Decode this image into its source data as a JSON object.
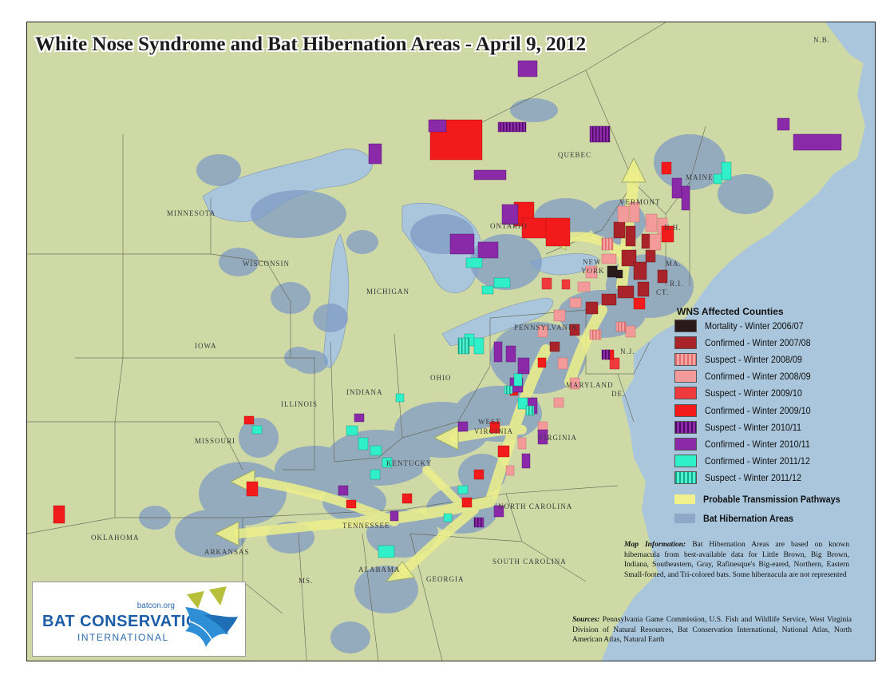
{
  "title": "White Nose Syndrome and Bat Hibernation Areas - April 9, 2012",
  "map_labels": {
    "minnesota": "MINNESOTA",
    "wisconsin": "WISCONSIN",
    "michigan": "MICHIGAN",
    "iowa": "IOWA",
    "illinois": "ILLINOIS",
    "indiana": "INDIANA",
    "ohio": "OHIO",
    "missouri": "MISSOURI",
    "kentucky": "KENTUCKY",
    "tennessee": "TENNESSEE",
    "oklahoma": "OKLAHOMA",
    "arkansas": "ARKANSAS",
    "ms": "MS.",
    "alabama": "ALABAMA",
    "georgia": "GEORGIA",
    "south_carolina": "SOUTH CAROLINA",
    "north_carolina": "NORTH CAROLINA",
    "west_virginia_1": "WEST",
    "west_virginia_2": "VIRGINIA",
    "virginia": "VIRGINIA",
    "maryland": "MARYLAND",
    "de": "DE.",
    "nj": "N.J.",
    "pennsylvania": "PENNSYLVANIA",
    "new_york_1": "NEW",
    "new_york_2": "YORK",
    "ontario": "ONTARIO",
    "quebec": "QUEBEC",
    "vermont": "VERMONT",
    "maine": "MAINE",
    "nh": "N.H.",
    "ma": "MA.",
    "ri": "R.I.",
    "ct": "CT.",
    "nb": "N.B."
  },
  "legend": {
    "title": "WNS Affected Counties",
    "items": [
      {
        "label": "Mortality - Winter 2006/07",
        "color": "#2b1a1a",
        "pattern": "solid"
      },
      {
        "label": "Confirmed - Winter 2007/08",
        "color": "#a8242a",
        "pattern": "solid"
      },
      {
        "label": "Suspect - Winter 2008/09",
        "color": "#f4a3a3",
        "pattern": "hatch",
        "hatch_color": "#e06c6c"
      },
      {
        "label": "Confirmed - Winter 2008/09",
        "color": "#f39a9a",
        "pattern": "solid"
      },
      {
        "label": "Suspect - Winter 2009/10",
        "color": "#ee3a3a",
        "pattern": "solid"
      },
      {
        "label": "Confirmed - Winter 2009/10",
        "color": "#f21a1a",
        "pattern": "solid"
      },
      {
        "label": "Suspect - Winter 2010/11",
        "color": "#8e2aa8",
        "pattern": "hatch",
        "hatch_color": "#4a0a66"
      },
      {
        "label": "Confirmed - Winter 2010/11",
        "color": "#8a2aa8",
        "pattern": "solid"
      },
      {
        "label": "Confirmed - Winter 2011/12",
        "color": "#2ff0c8",
        "pattern": "solid"
      },
      {
        "label": "Suspect - Winter 2011/12",
        "color": "#4ef2d0",
        "pattern": "hatch",
        "hatch_color": "#13a88a"
      }
    ],
    "pathways": {
      "label": "Probable Transmission Pathways",
      "color": "#f0f08c"
    },
    "hibernation": {
      "label": "Bat Hibernation Areas",
      "color": "#8fa8c8"
    }
  },
  "map_information": {
    "heading": "Map Information:",
    "text": "Bat Hibernation Areas are based on known hibernacula from best-available data for Little Brown, Big Brown, Indiana, Southeastern, Gray, Rafinesque's Big-eared, Northern, Eastern Small-footed, and Tri-colored bats. Some hibernacula are not represented"
  },
  "sources": {
    "heading": "Sources:",
    "text": "Pennsylvania Game Commission, U.S. Fish and Wildlife Service, West Virginia Division of Natural Resources, Bat Conservation International, National Atlas, North American Atlas, Natural Earth"
  },
  "logo": {
    "url": "batcon.org",
    "name": "BAT CONSERVATION",
    "sub": "INTERNATIONAL"
  },
  "colors": {
    "land": "#cfd9a6",
    "water": "#a9c6dc",
    "hibernation": "#7f9cc4",
    "pathway": "#eef08a"
  }
}
